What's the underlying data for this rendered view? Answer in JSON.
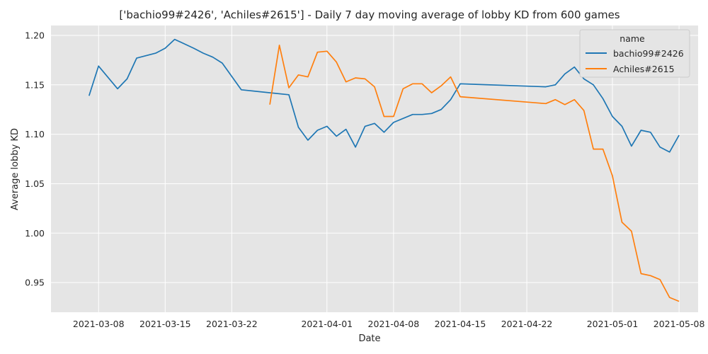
{
  "chart_data": {
    "type": "line",
    "title": "['bachio99#2426', 'Achiles#2615'] - Daily 7 day moving average of lobby KD from 600 games",
    "xlabel": "Date",
    "ylabel": "Average lobby KD",
    "xlim": [
      "2021-03-03",
      "2021-05-10"
    ],
    "ylim": [
      0.92,
      1.21
    ],
    "x_ticks": [
      "2021-03-08",
      "2021-03-15",
      "2021-03-22",
      "2021-04-01",
      "2021-04-08",
      "2021-04-15",
      "2021-04-22",
      "2021-05-01",
      "2021-05-08"
    ],
    "y_ticks": [
      "0.95",
      "1.00",
      "1.05",
      "1.10",
      "1.15",
      "1.20"
    ],
    "grid": true,
    "legend": {
      "title": "name",
      "placement": "top-right"
    },
    "series": [
      {
        "name": "bachio99#2426",
        "color": "#1f77b4",
        "points": [
          [
            "2021-03-07",
            1.139
          ],
          [
            "2021-03-08",
            1.169
          ],
          [
            "2021-03-10",
            1.146
          ],
          [
            "2021-03-11",
            1.156
          ],
          [
            "2021-03-12",
            1.177
          ],
          [
            "2021-03-14",
            1.182
          ],
          [
            "2021-03-15",
            1.187
          ],
          [
            "2021-03-16",
            1.196
          ],
          [
            "2021-03-18",
            1.187
          ],
          [
            "2021-03-19",
            1.182
          ],
          [
            "2021-03-20",
            1.178
          ],
          [
            "2021-03-21",
            1.172
          ],
          [
            "2021-03-23",
            1.145
          ],
          [
            "2021-03-28",
            1.14
          ],
          [
            "2021-03-29",
            1.107
          ],
          [
            "2021-03-30",
            1.094
          ],
          [
            "2021-03-31",
            1.104
          ],
          [
            "2021-04-01",
            1.108
          ],
          [
            "2021-04-02",
            1.098
          ],
          [
            "2021-04-03",
            1.105
          ],
          [
            "2021-04-04",
            1.087
          ],
          [
            "2021-04-05",
            1.108
          ],
          [
            "2021-04-06",
            1.111
          ],
          [
            "2021-04-07",
            1.102
          ],
          [
            "2021-04-08",
            1.112
          ],
          [
            "2021-04-10",
            1.12
          ],
          [
            "2021-04-11",
            1.12
          ],
          [
            "2021-04-12",
            1.121
          ],
          [
            "2021-04-13",
            1.125
          ],
          [
            "2021-04-14",
            1.135
          ],
          [
            "2021-04-15",
            1.151
          ],
          [
            "2021-04-24",
            1.148
          ],
          [
            "2021-04-25",
            1.15
          ],
          [
            "2021-04-26",
            1.161
          ],
          [
            "2021-04-27",
            1.168
          ],
          [
            "2021-04-28",
            1.156
          ],
          [
            "2021-04-29",
            1.15
          ],
          [
            "2021-04-30",
            1.136
          ],
          [
            "2021-05-01",
            1.118
          ],
          [
            "2021-05-02",
            1.108
          ],
          [
            "2021-05-03",
            1.088
          ],
          [
            "2021-05-04",
            1.104
          ],
          [
            "2021-05-05",
            1.102
          ],
          [
            "2021-05-06",
            1.087
          ],
          [
            "2021-05-07",
            1.082
          ],
          [
            "2021-05-08",
            1.099
          ]
        ]
      },
      {
        "name": "Achiles#2615",
        "color": "#ff7f0e",
        "points": [
          [
            "2021-03-26",
            1.13
          ],
          [
            "2021-03-27",
            1.19
          ],
          [
            "2021-03-28",
            1.147
          ],
          [
            "2021-03-29",
            1.16
          ],
          [
            "2021-03-30",
            1.158
          ],
          [
            "2021-03-31",
            1.183
          ],
          [
            "2021-04-01",
            1.184
          ],
          [
            "2021-04-02",
            1.173
          ],
          [
            "2021-04-03",
            1.153
          ],
          [
            "2021-04-04",
            1.157
          ],
          [
            "2021-04-05",
            1.156
          ],
          [
            "2021-04-06",
            1.148
          ],
          [
            "2021-04-07",
            1.118
          ],
          [
            "2021-04-08",
            1.118
          ],
          [
            "2021-04-09",
            1.146
          ],
          [
            "2021-04-10",
            1.151
          ],
          [
            "2021-04-11",
            1.151
          ],
          [
            "2021-04-12",
            1.142
          ],
          [
            "2021-04-13",
            1.149
          ],
          [
            "2021-04-14",
            1.158
          ],
          [
            "2021-04-15",
            1.138
          ],
          [
            "2021-04-24",
            1.131
          ],
          [
            "2021-04-25",
            1.135
          ],
          [
            "2021-04-26",
            1.13
          ],
          [
            "2021-04-27",
            1.135
          ],
          [
            "2021-04-28",
            1.124
          ],
          [
            "2021-04-29",
            1.085
          ],
          [
            "2021-04-30",
            1.085
          ],
          [
            "2021-05-01",
            1.058
          ],
          [
            "2021-05-02",
            1.011
          ],
          [
            "2021-05-03",
            1.002
          ],
          [
            "2021-05-04",
            0.959
          ],
          [
            "2021-05-05",
            0.957
          ],
          [
            "2021-05-06",
            0.953
          ],
          [
            "2021-05-07",
            0.935
          ],
          [
            "2021-05-08",
            0.931
          ]
        ]
      }
    ]
  }
}
